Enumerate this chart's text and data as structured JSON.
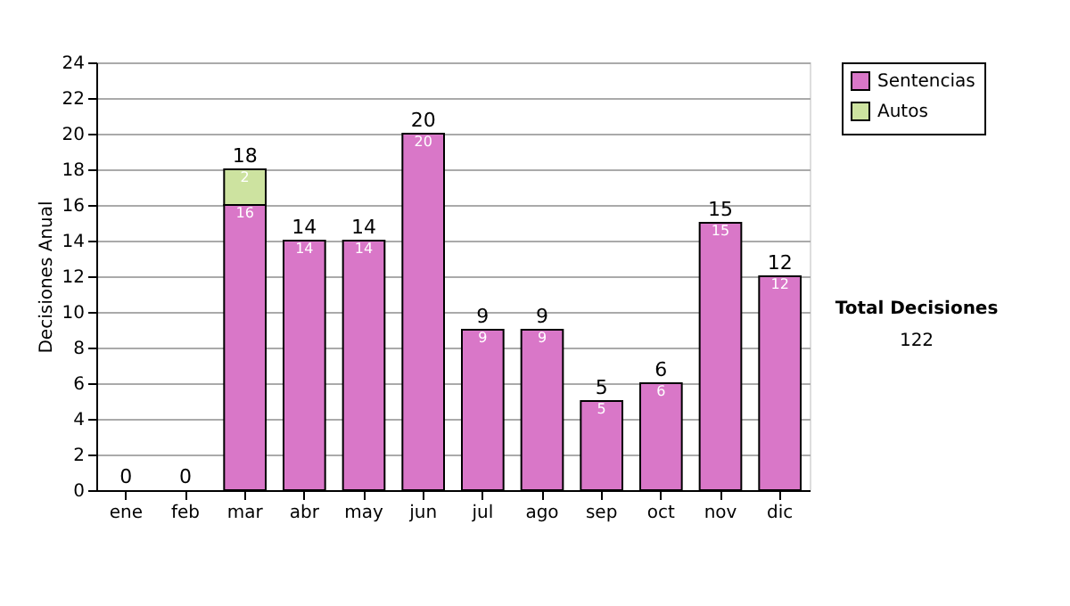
{
  "chart_data": {
    "type": "bar",
    "stacked": true,
    "ylabel": "Decisiones Anual",
    "categories": [
      "ene",
      "feb",
      "mar",
      "abr",
      "may",
      "jun",
      "jul",
      "ago",
      "sep",
      "oct",
      "nov",
      "dic"
    ],
    "series": [
      {
        "name": "Sentencias",
        "color": "#d977c8",
        "values": [
          0,
          0,
          16,
          14,
          14,
          20,
          9,
          9,
          5,
          6,
          15,
          12
        ],
        "value_labels": [
          null,
          null,
          "16",
          "14",
          "14",
          "20",
          "9",
          "9",
          "5",
          "6",
          "15",
          "12"
        ]
      },
      {
        "name": "Autos",
        "color": "#cde3a0",
        "values": [
          0,
          0,
          2,
          0,
          0,
          0,
          0,
          0,
          0,
          0,
          0,
          0
        ],
        "value_labels": [
          null,
          null,
          "2",
          null,
          null,
          null,
          null,
          null,
          null,
          null,
          null,
          null
        ]
      }
    ],
    "totals": [
      "0",
      "0",
      "18",
      "14",
      "14",
      "20",
      "9",
      "9",
      "5",
      "6",
      "15",
      "12"
    ],
    "ylim": [
      0,
      24
    ],
    "yticks": [
      0,
      2,
      4,
      6,
      8,
      10,
      12,
      14,
      16,
      18,
      20,
      22,
      24
    ],
    "grid": "y",
    "legend": "right",
    "annotations": [
      "Total Decisiones",
      "122"
    ]
  }
}
